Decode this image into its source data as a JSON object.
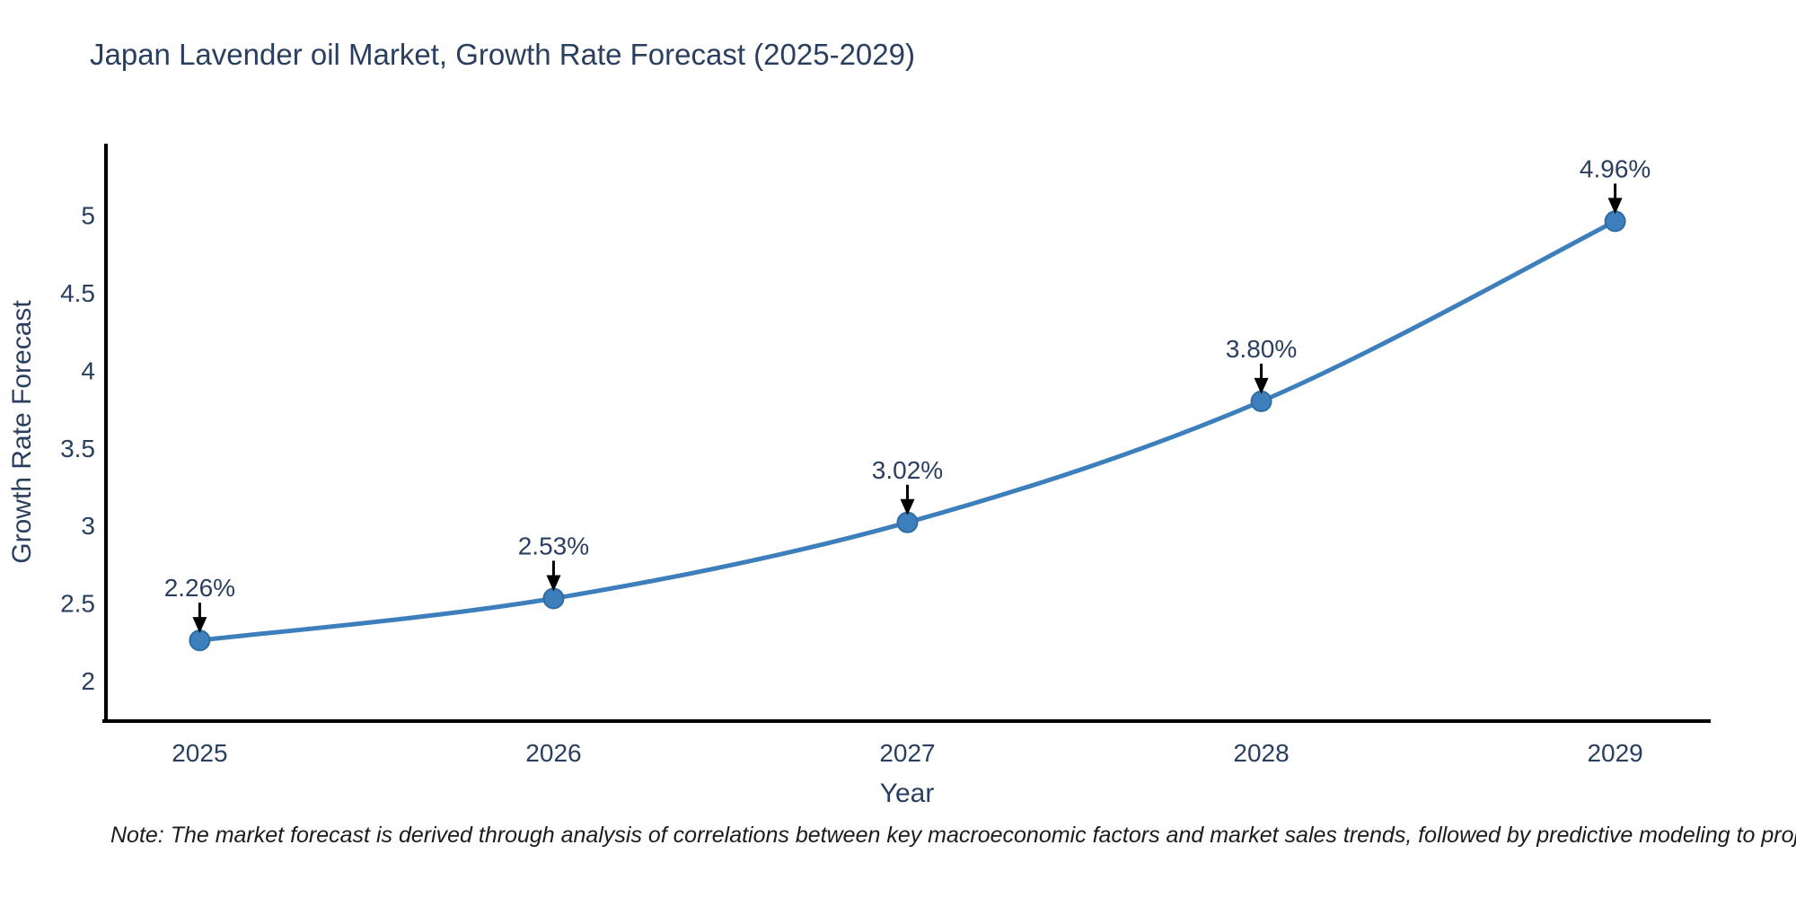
{
  "title": "Japan Lavender oil Market, Growth Rate Forecast (2025-2029)",
  "note": "Note: The market forecast is derived through analysis of correlations between key macroeconomic factors and market sales trends, followed by predictive modeling to project future sales",
  "colors": {
    "line": "#3d7ebc",
    "marker": "#3d7ebc",
    "marker_edge": "#2e6da4",
    "axis": "#000000",
    "text": "#2a3f5f",
    "note_text": "#1c1c1c",
    "background": "#ffffff"
  },
  "chart_data": {
    "type": "line",
    "title": "Japan Lavender oil Market, Growth Rate Forecast (2025-2029)",
    "xlabel": "Year",
    "ylabel": "Growth Rate Forecast",
    "x": [
      2025,
      2026,
      2027,
      2028,
      2029
    ],
    "values": [
      2.26,
      2.53,
      3.02,
      3.8,
      4.96
    ],
    "point_labels": [
      "2.26%",
      "2.53%",
      "3.02%",
      "3.80%",
      "4.96%"
    ],
    "y_ticks": [
      2,
      2.5,
      3,
      3.5,
      4,
      4.5,
      5
    ],
    "xlim": [
      2024.73,
      2029.27
    ],
    "ylim": [
      1.74,
      5.46
    ],
    "line_shape": "spline",
    "grid": false,
    "legend": "none",
    "annotations": "black arrow pointing down to each data point with percentage label above"
  }
}
